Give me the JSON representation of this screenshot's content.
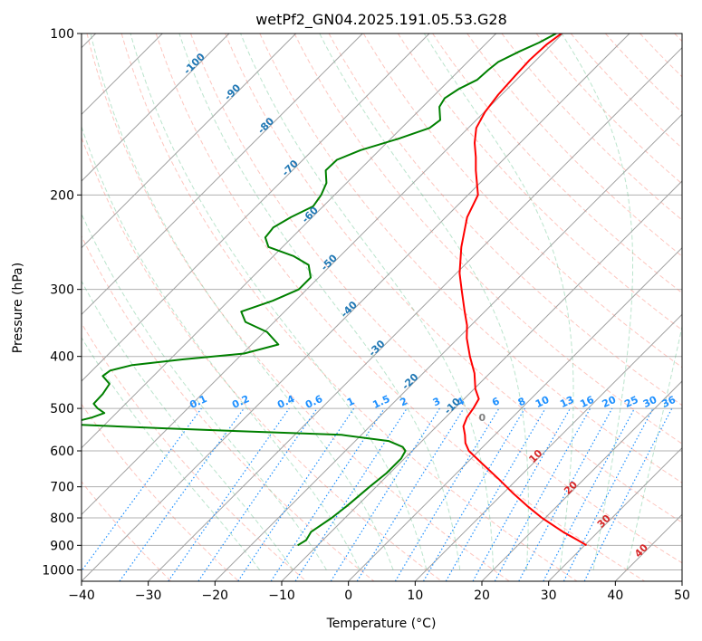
{
  "chart_data": {
    "type": "line",
    "title": "wetPf2_GN04.2025.191.05.53.G28",
    "xlabel": "Temperature (°C)",
    "ylabel": "Pressure (hPa)",
    "xlim": [
      -40,
      50
    ],
    "ylim": [
      1050,
      100
    ],
    "y_scale": "log",
    "grid": true,
    "x_ticks": [
      -40,
      -30,
      -20,
      -10,
      0,
      10,
      20,
      30,
      40,
      50
    ],
    "y_ticks": [
      100,
      200,
      300,
      400,
      500,
      600,
      700,
      800,
      900,
      1000
    ],
    "colors": {
      "temperature": "#ff0000",
      "dewpoint": "#008000",
      "isotherm_labels": "#1f77b4",
      "mixing_ratio": "#1e90ff",
      "dry_adiabats": "#fa8072",
      "moist_adiabats": "#3cb371",
      "skew_isotherms": "#a0a0a0",
      "wet_bulb_zero_label": "#808080",
      "high_isotherm_labels": "#d62728"
    },
    "series": [
      {
        "key": "temperature",
        "p": [
          100,
          105,
          112,
          120,
          130,
          140,
          150,
          160,
          170,
          180,
          200,
          220,
          250,
          280,
          300,
          330,
          350,
          370,
          400,
          430,
          460,
          480,
          500,
          520,
          540,
          560,
          580,
          600,
          630,
          680,
          720,
          760,
          800,
          850,
          880,
          900
        ],
        "t": [
          -50.2,
          -50.8,
          -51.0,
          -50.8,
          -50.5,
          -49.9,
          -48.8,
          -46.8,
          -44.5,
          -42.5,
          -38.5,
          -36.8,
          -33.2,
          -29.5,
          -26.8,
          -23.0,
          -20.6,
          -18.7,
          -15.5,
          -12.3,
          -9.8,
          -7.8,
          -7.2,
          -6.8,
          -6.0,
          -4.5,
          -3.2,
          -1.5,
          2.0,
          7.5,
          11.5,
          15.5,
          19.5,
          24.8,
          28.2,
          30.3
        ]
      },
      {
        "key": "dewpoint",
        "p": [
          100,
          104,
          108,
          113,
          117,
          122,
          127,
          132,
          137,
          145,
          150,
          157,
          165,
          172,
          180,
          190,
          200,
          210,
          220,
          230,
          240,
          250,
          260,
          270,
          285,
          300,
          315,
          330,
          345,
          360,
          380,
          395,
          405,
          415,
          425,
          435,
          450,
          470,
          490,
          500,
          510,
          520,
          535,
          545,
          560,
          575,
          590,
          600,
          620,
          660,
          700,
          760,
          800,
          850,
          880,
          900
        ],
        "t": [
          -51.0,
          -52.2,
          -53.8,
          -55.4,
          -55.7,
          -55.9,
          -57.3,
          -58.0,
          -57.5,
          -55.4,
          -55.8,
          -58.8,
          -62.8,
          -64.9,
          -65.0,
          -63.0,
          -62.0,
          -61.5,
          -63.2,
          -64.3,
          -64.0,
          -62.1,
          -57.0,
          -53.4,
          -51.2,
          -51.2,
          -53.4,
          -56.5,
          -54.3,
          -49.6,
          -46.0,
          -49.8,
          -58.0,
          -64.8,
          -67.3,
          -67.6,
          -65.4,
          -64.9,
          -64.8,
          -63.5,
          -61.8,
          -63.0,
          -66.0,
          -50.0,
          -23.0,
          -15.0,
          -12.0,
          -11.0,
          -10.5,
          -10.5,
          -11.0,
          -11.5,
          -12.0,
          -13.0,
          -12.5,
          -13.0
        ]
      }
    ],
    "isotherm_labels": [
      -100,
      -90,
      -80,
      -70,
      -60,
      -50,
      -40,
      -30,
      -20,
      -10
    ],
    "mixing_ratio_labels": [
      "0.1",
      "0.2",
      "0.4",
      "0.6",
      "1",
      "1.5",
      "2",
      "3",
      "4",
      "6",
      "8",
      "10",
      "13",
      "16",
      "20",
      "25",
      "30",
      "36"
    ],
    "wet_bulb_zero_label": "0",
    "high_isotherm_labels": [
      10,
      20,
      30,
      40
    ]
  }
}
